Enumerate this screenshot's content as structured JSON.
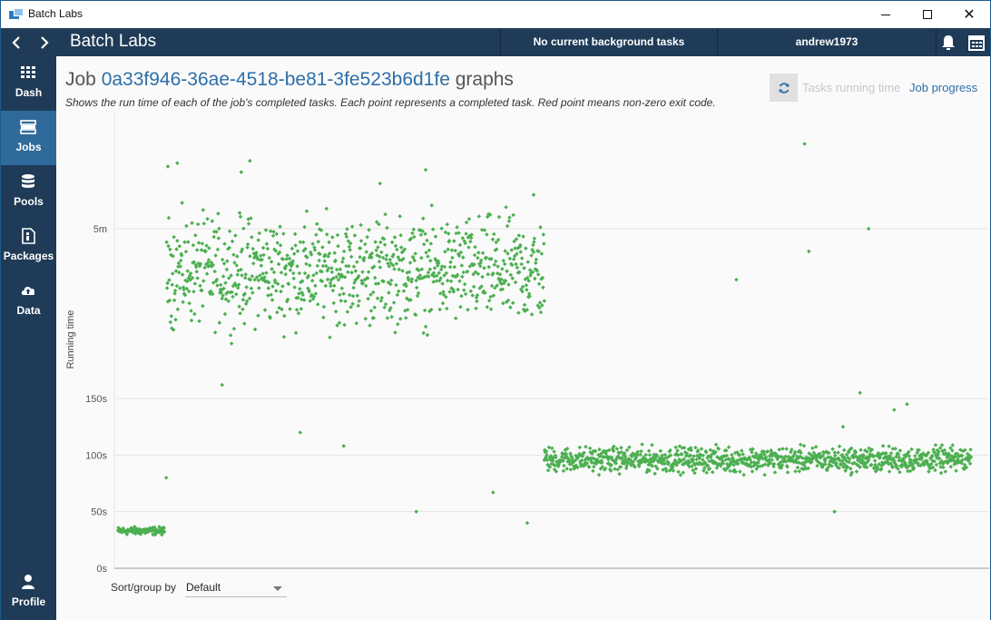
{
  "window": {
    "title": "Batch Labs",
    "close_glyph": "✕"
  },
  "header": {
    "app_title": "Batch Labs",
    "background_tasks": "No current background tasks",
    "user": "andrew1973"
  },
  "sidebar": {
    "items": [
      {
        "label": "Dash",
        "icon": "dashboard-icon"
      },
      {
        "label": "Jobs",
        "icon": "jobs-icon"
      },
      {
        "label": "Pools",
        "icon": "pools-icon"
      },
      {
        "label": "Packages",
        "icon": "packages-icon"
      },
      {
        "label": "Data",
        "icon": "data-upload-icon"
      }
    ],
    "profile_label": "Profile",
    "active": "Jobs"
  },
  "page": {
    "title_prefix": "Job ",
    "job_id": "0a33f946-36ae-4518-be81-3fe523b6d1fe",
    "title_suffix": " graphs",
    "description": "Shows the run time of each of the job's completed tasks. Each point represents a completed task. Red point means non-zero exit code.",
    "tabs": {
      "running_time": "Tasks running time",
      "job_progress": "Job progress"
    },
    "sort_label": "Sort/group by",
    "sort_value": "Default"
  },
  "colors": {
    "accent": "#2d6ea8",
    "sidebar_bg": "#1f3b57",
    "sidebar_active": "#2f6a9b",
    "point": "#4caf50",
    "error_point": "#e53935"
  },
  "chart_data": {
    "type": "scatter",
    "title": "",
    "xlabel": "",
    "ylabel": "Running time",
    "y_ticks": [
      {
        "label": "0s",
        "value": 0
      },
      {
        "label": "50s",
        "value": 50
      },
      {
        "label": "100s",
        "value": 100
      },
      {
        "label": "150s",
        "value": 150
      },
      {
        "label": "5m",
        "value": 300
      }
    ],
    "ylim": [
      0,
      390
    ],
    "x_range": [
      1,
      2000
    ],
    "grid": true,
    "legend": "none",
    "series": [
      {
        "x_start": 1,
        "x_end": 110,
        "count": 110,
        "typical_low_s": 28,
        "typical_high_s": 38,
        "outliers": [
          [
            114,
            80
          ]
        ]
      },
      {
        "x_start": 115,
        "x_end": 1000,
        "count": 880,
        "typical_low_s": 195,
        "typical_high_s": 330,
        "outliers": [
          [
            118,
            355
          ],
          [
            140,
            358
          ],
          [
            245,
            162
          ],
          [
            290,
            350
          ],
          [
            310,
            360
          ],
          [
            330,
            290
          ],
          [
            340,
            255
          ],
          [
            428,
            120
          ],
          [
            530,
            108
          ],
          [
            615,
            340
          ],
          [
            640,
            230
          ],
          [
            700,
            50
          ],
          [
            722,
            352
          ],
          [
            880,
            67
          ],
          [
            960,
            40
          ],
          [
            975,
            330
          ]
        ]
      },
      {
        "x_start": 1000,
        "x_end": 2000,
        "count": 1000,
        "typical_low_s": 80,
        "typical_high_s": 112,
        "outliers": [
          [
            1450,
            255
          ],
          [
            1610,
            375
          ],
          [
            1620,
            280
          ],
          [
            1680,
            50
          ],
          [
            1700,
            125
          ],
          [
            1740,
            155
          ],
          [
            1760,
            300
          ],
          [
            1820,
            140
          ],
          [
            1850,
            145
          ]
        ]
      }
    ]
  }
}
